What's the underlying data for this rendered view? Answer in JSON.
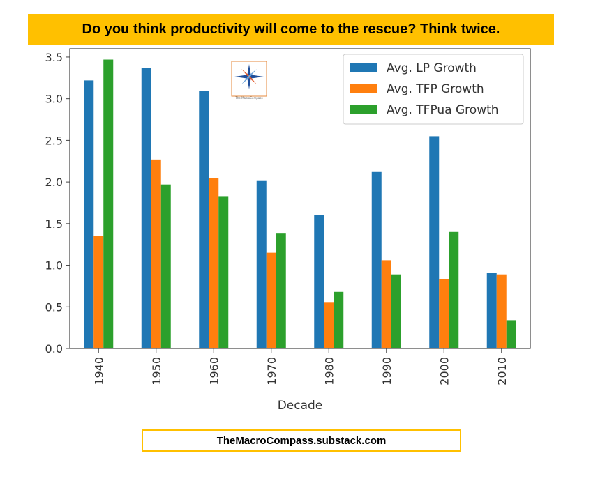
{
  "banner": {
    "title": "Do you think productivity will come to the rescue? Think twice."
  },
  "footer": {
    "text": "TheMacroCompass.substack.com"
  },
  "logo": {
    "icon": "compass-logo-icon",
    "text": "The MacroCompass"
  },
  "chart_data": {
    "type": "bar",
    "title": "",
    "xlabel": "Decade",
    "ylabel": "",
    "categories": [
      "1940",
      "1950",
      "1960",
      "1970",
      "1980",
      "1990",
      "2000",
      "2010"
    ],
    "ylim": [
      0,
      3.6
    ],
    "yticks": [
      "0.0",
      "0.5",
      "1.0",
      "1.5",
      "2.0",
      "2.5",
      "3.0",
      "3.5"
    ],
    "grid": false,
    "legend_position": "top-right",
    "series": [
      {
        "name": "Avg. LP Growth",
        "color": "#1f77b4",
        "values": [
          3.22,
          3.37,
          3.09,
          2.02,
          1.6,
          2.12,
          2.55,
          0.91
        ]
      },
      {
        "name": "Avg. TFP Growth",
        "color": "#ff7f0e",
        "values": [
          1.35,
          2.27,
          2.05,
          1.15,
          0.55,
          1.06,
          0.83,
          0.89
        ]
      },
      {
        "name": "Avg. TFPua Growth",
        "color": "#2ca02c",
        "values": [
          3.47,
          1.97,
          1.83,
          1.38,
          0.68,
          0.89,
          1.4,
          0.34
        ]
      }
    ]
  }
}
